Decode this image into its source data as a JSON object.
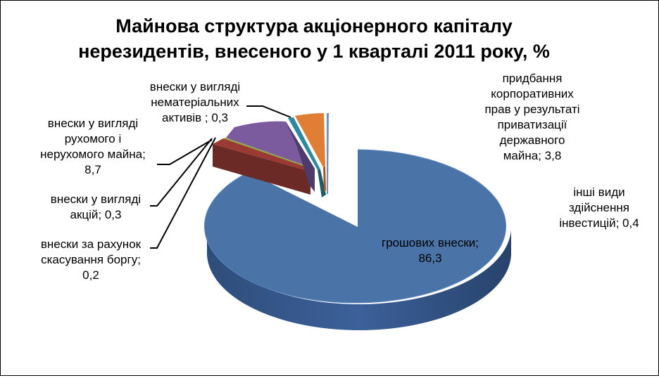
{
  "chart_data": {
    "type": "pie",
    "title_lines": [
      "Майнова структура акціонерного капіталу",
      "нерезидентів, внесеного у 1 кварталі 2011 року, %"
    ],
    "slices": [
      {
        "label_lines": [
          "грошових внески;",
          "86,3"
        ],
        "value": 86.3,
        "color": "#4A73A8"
      },
      {
        "label_lines": [
          "інші види",
          "здійснення",
          "інвестицій; 0,4"
        ],
        "value": 0.4,
        "color": "#6E8FBF"
      },
      {
        "label_lines": [
          "придбання",
          "корпоративних",
          "прав у результаті",
          "приватизації",
          "державного",
          "майна; 3,8"
        ],
        "value": 3.8,
        "color": "#E07E36"
      },
      {
        "label_lines": [
          "внески у вигляді",
          "нематеріальних",
          "активів ; 0,3"
        ],
        "value": 0.3,
        "color": "#2B8A9E"
      },
      {
        "label_lines": [
          "внески у вигляді",
          "рухомого і",
          "нерухомого майна;",
          "8,7"
        ],
        "value": 8.7,
        "color": "#7B5B9E"
      },
      {
        "label_lines": [
          "внески у вигляді",
          "акцій; 0,3"
        ],
        "value": 0.3,
        "color": "#8AA742"
      },
      {
        "label_lines": [
          "внески за рахунок",
          "скасування боргу;",
          "0,2"
        ],
        "value": 0.2,
        "color": "#9B3A33"
      }
    ]
  }
}
